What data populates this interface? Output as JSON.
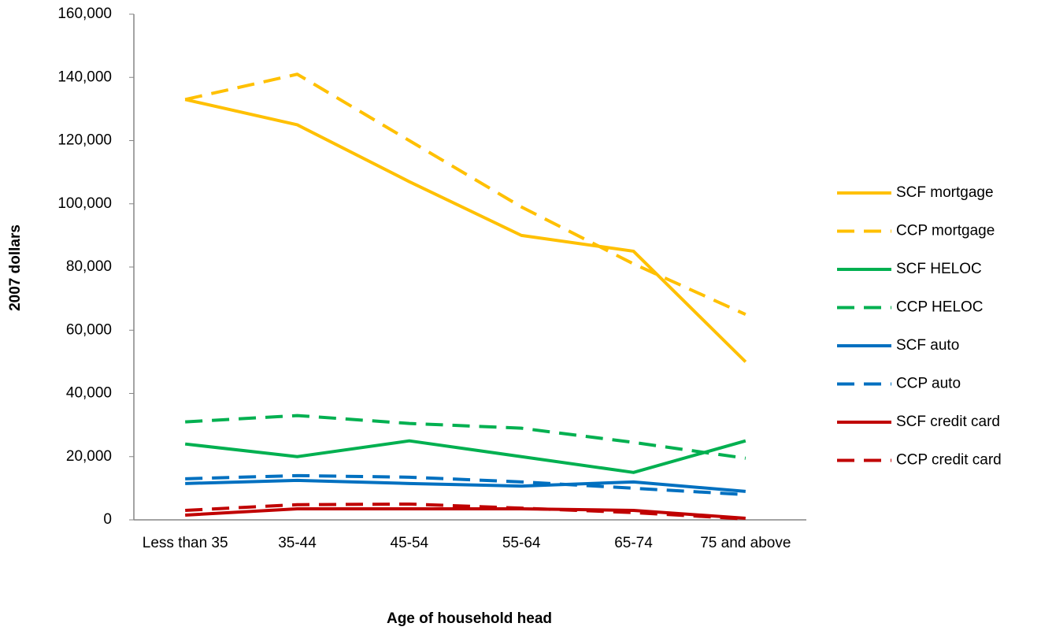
{
  "chart_data": {
    "type": "line",
    "x_label": "Age of household head",
    "y_label": "2007 dollars",
    "categories": [
      "Less than 35",
      "35-44",
      "45-54",
      "55-64",
      "65-74",
      "75 and above"
    ],
    "ylim": [
      0,
      160000
    ],
    "yticks": [
      0,
      {
        "value": 20000,
        "label": "20,000"
      },
      {
        "value": 40000,
        "label": "40,000"
      },
      {
        "value": 60000,
        "label": "60,000"
      },
      {
        "value": 80000,
        "label": "80,000"
      },
      {
        "value": 100000,
        "label": "100,000"
      },
      {
        "value": 120000,
        "label": "120,000"
      },
      {
        "value": 140000,
        "label": "140,000"
      },
      {
        "value": 160000,
        "label": "160,000"
      }
    ],
    "grid": false,
    "legend": "right",
    "series": [
      {
        "name": "SCF mortgage",
        "color": "#ffc000",
        "dashed": false,
        "values": [
          133000,
          125000,
          107000,
          90000,
          85000,
          50000
        ]
      },
      {
        "name": "CCP mortgage",
        "color": "#ffc000",
        "dashed": true,
        "values": [
          133000,
          141000,
          120000,
          99000,
          81000,
          65000
        ]
      },
      {
        "name": "SCF HELOC",
        "color": "#00b050",
        "dashed": false,
        "values": [
          24000,
          20000,
          25000,
          20000,
          15000,
          25000
        ]
      },
      {
        "name": "CCP HELOC",
        "color": "#00b050",
        "dashed": true,
        "values": [
          31000,
          33000,
          30500,
          29000,
          24500,
          19500
        ]
      },
      {
        "name": "SCF auto",
        "color": "#0070c0",
        "dashed": false,
        "values": [
          11500,
          12500,
          11500,
          10700,
          12000,
          9000
        ]
      },
      {
        "name": "CCP auto",
        "color": "#0070c0",
        "dashed": true,
        "values": [
          13000,
          14000,
          13500,
          12000,
          10000,
          8000
        ]
      },
      {
        "name": "SCF credit card",
        "color": "#c00000",
        "dashed": false,
        "values": [
          1500,
          3500,
          3500,
          3500,
          3000,
          500
        ]
      },
      {
        "name": "CCP credit card",
        "color": "#c00000",
        "dashed": true,
        "values": [
          3000,
          4800,
          5000,
          3700,
          2300,
          300
        ]
      }
    ]
  }
}
